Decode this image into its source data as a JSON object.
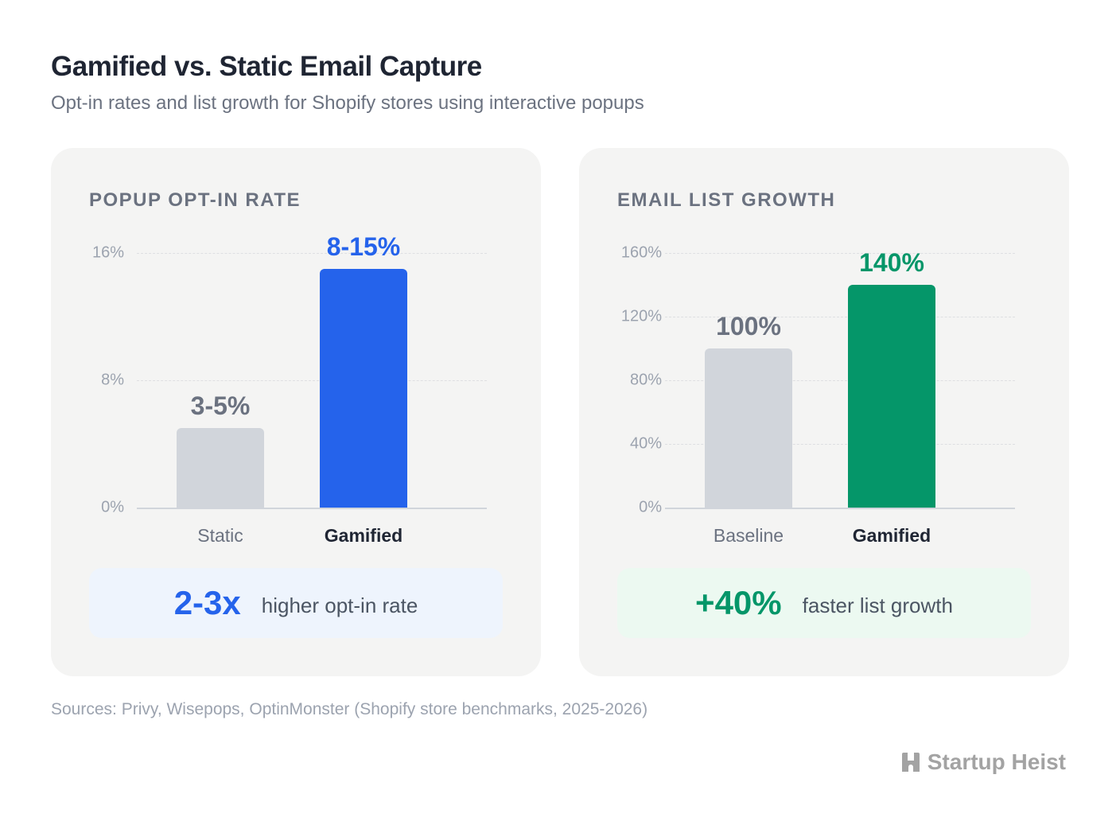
{
  "title": "Gamified vs. Static Email Capture",
  "subtitle": "Opt-in rates and list growth for Shopify stores using interactive popups",
  "chart_data": [
    {
      "type": "bar",
      "title": "POPUP OPT-IN RATE",
      "categories": [
        "Static",
        "Gamified"
      ],
      "values": [
        5,
        15
      ],
      "data_labels": [
        "3-5%",
        "8-15%"
      ],
      "colors": [
        "#d1d5db",
        "#2563eb"
      ],
      "label_colors": [
        "#6b7280",
        "#2563eb"
      ],
      "ylim": [
        0,
        16
      ],
      "yticks": [
        0,
        8,
        16
      ],
      "ytick_labels": [
        "0%",
        "8%",
        "16%"
      ],
      "grid": true,
      "callout": {
        "value": "2-3x",
        "text": "higher opt-in rate",
        "color": "#2563eb",
        "bg": "#eef4fd"
      }
    },
    {
      "type": "bar",
      "title": "EMAIL LIST GROWTH",
      "categories": [
        "Baseline",
        "Gamified"
      ],
      "values": [
        100,
        140
      ],
      "data_labels": [
        "100%",
        "140%"
      ],
      "colors": [
        "#d1d5db",
        "#059669"
      ],
      "label_colors": [
        "#6b7280",
        "#059669"
      ],
      "ylim": [
        0,
        160
      ],
      "yticks": [
        0,
        40,
        80,
        120,
        160
      ],
      "ytick_labels": [
        "0%",
        "40%",
        "80%",
        "120%",
        "160%"
      ],
      "grid": true,
      "callout": {
        "value": "+40%",
        "text": "faster list growth",
        "color": "#059669",
        "bg": "#ecf9f1"
      }
    }
  ],
  "sources": "Sources: Privy, Wisepops, OptinMonster (Shopify store benchmarks, 2025-2026)",
  "logo": {
    "text": "Startup Heist",
    "icon": "h-building-icon"
  }
}
